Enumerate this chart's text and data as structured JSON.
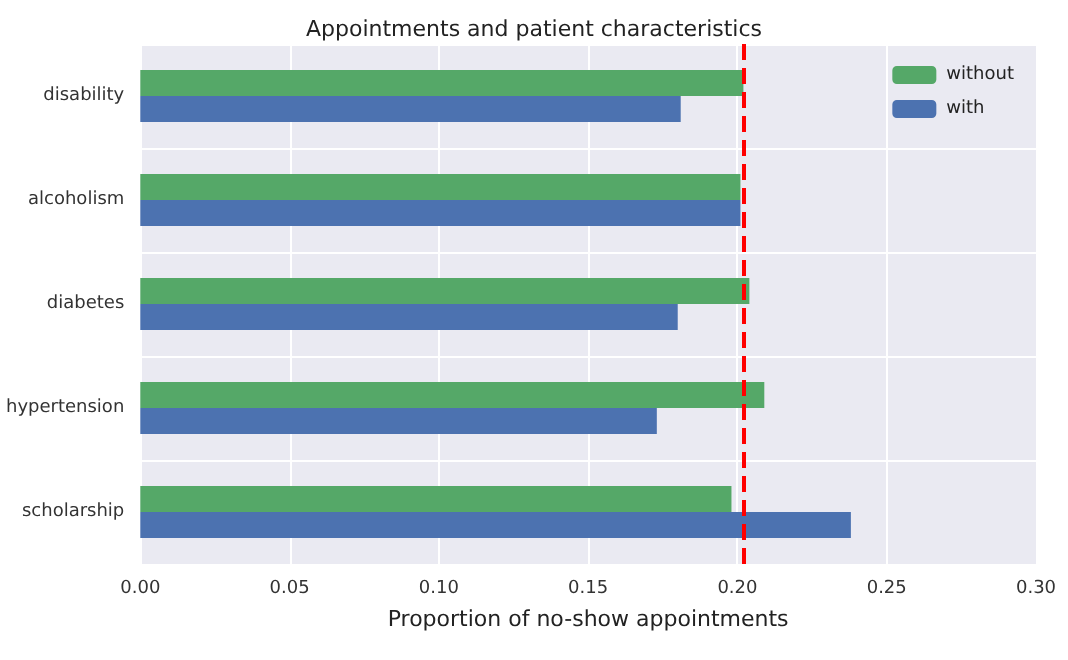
{
  "chart_data": {
    "type": "bar",
    "orientation": "horizontal",
    "title": "Appointments and patient characteristics",
    "xlabel": "Proportion of no-show appointments",
    "categories": [
      "disability",
      "alcoholism",
      "diabetes",
      "hypertension",
      "scholarship"
    ],
    "series": [
      {
        "name": "without",
        "color": "#55a868",
        "values": [
          0.202,
          0.201,
          0.204,
          0.209,
          0.198
        ]
      },
      {
        "name": "with",
        "color": "#4c72b0",
        "values": [
          0.181,
          0.201,
          0.18,
          0.173,
          0.238
        ]
      }
    ],
    "xlim": [
      0,
      0.3
    ],
    "xticks": [
      {
        "value": 0,
        "label": "0.00"
      },
      {
        "value": 0.05,
        "label": "0.05"
      },
      {
        "value": 0.1,
        "label": "0.10"
      },
      {
        "value": 0.15,
        "label": "0.15"
      },
      {
        "value": 0.2,
        "label": "0.20"
      },
      {
        "value": 0.25,
        "label": "0.25"
      },
      {
        "value": 0.3,
        "label": "0.30"
      }
    ],
    "ref_lines": [
      {
        "axis": "x",
        "value": 0.202,
        "color": "#ff0000",
        "line_style": "dashed"
      }
    ],
    "grid": true,
    "legend": "top right"
  }
}
